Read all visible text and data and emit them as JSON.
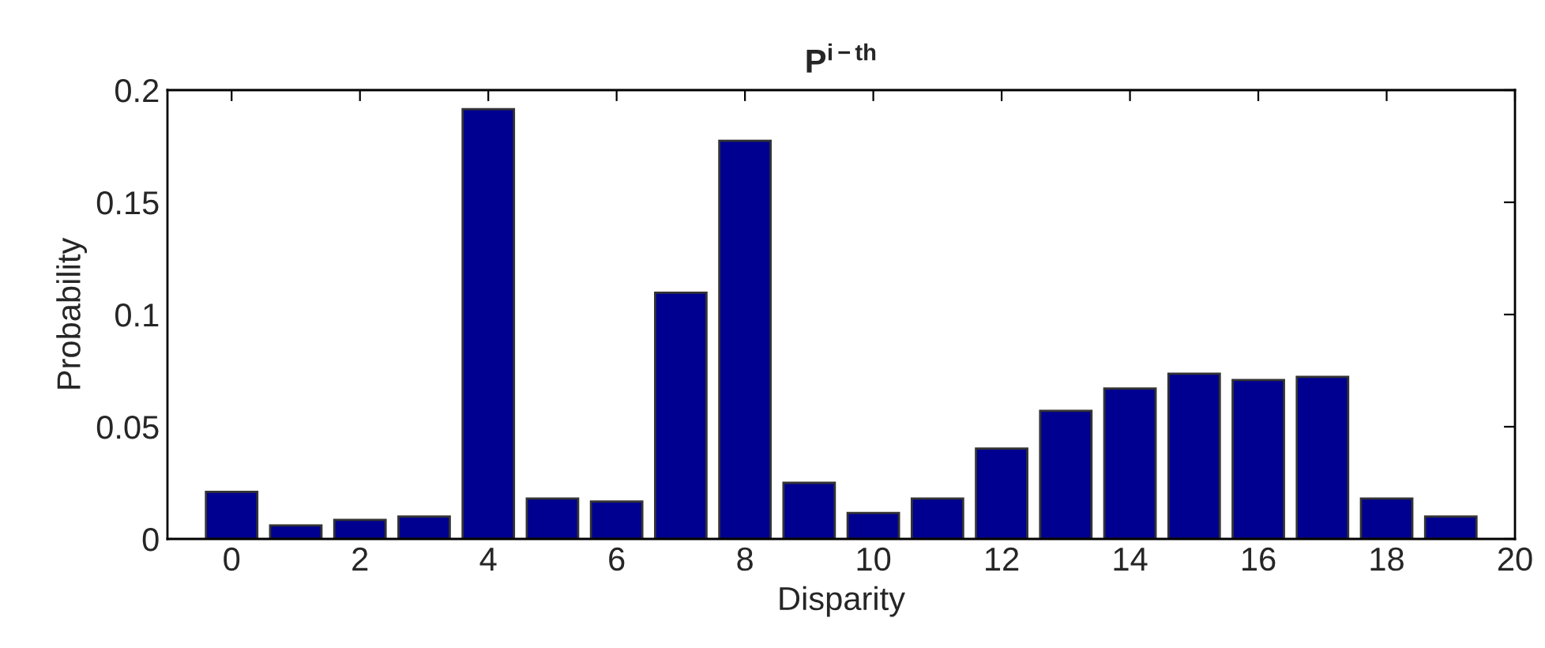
{
  "chart_data": {
    "type": "bar",
    "title": "P$^{i−th}$",
    "xlabel": "Disparity",
    "ylabel": "Probability",
    "x": [
      0,
      1,
      2,
      3,
      4,
      5,
      6,
      7,
      8,
      9,
      10,
      11,
      12,
      13,
      14,
      15,
      16,
      17,
      18,
      19
    ],
    "values": [
      0.021,
      0.006,
      0.0085,
      0.01,
      0.1915,
      0.018,
      0.0167,
      0.1097,
      0.1774,
      0.025,
      0.0116,
      0.018,
      0.0403,
      0.0571,
      0.067,
      0.0736,
      0.0708,
      0.0722,
      0.018,
      0.01
    ],
    "color": "#000090",
    "xlim": [
      -1,
      20
    ],
    "xticks": [
      0,
      2,
      4,
      6,
      8,
      10,
      12,
      14,
      16,
      18,
      20
    ],
    "ylim": [
      0,
      0.2
    ],
    "yticks": [
      0,
      0.05,
      0.1,
      0.15,
      0.2
    ],
    "grid": false,
    "legend": false
  }
}
